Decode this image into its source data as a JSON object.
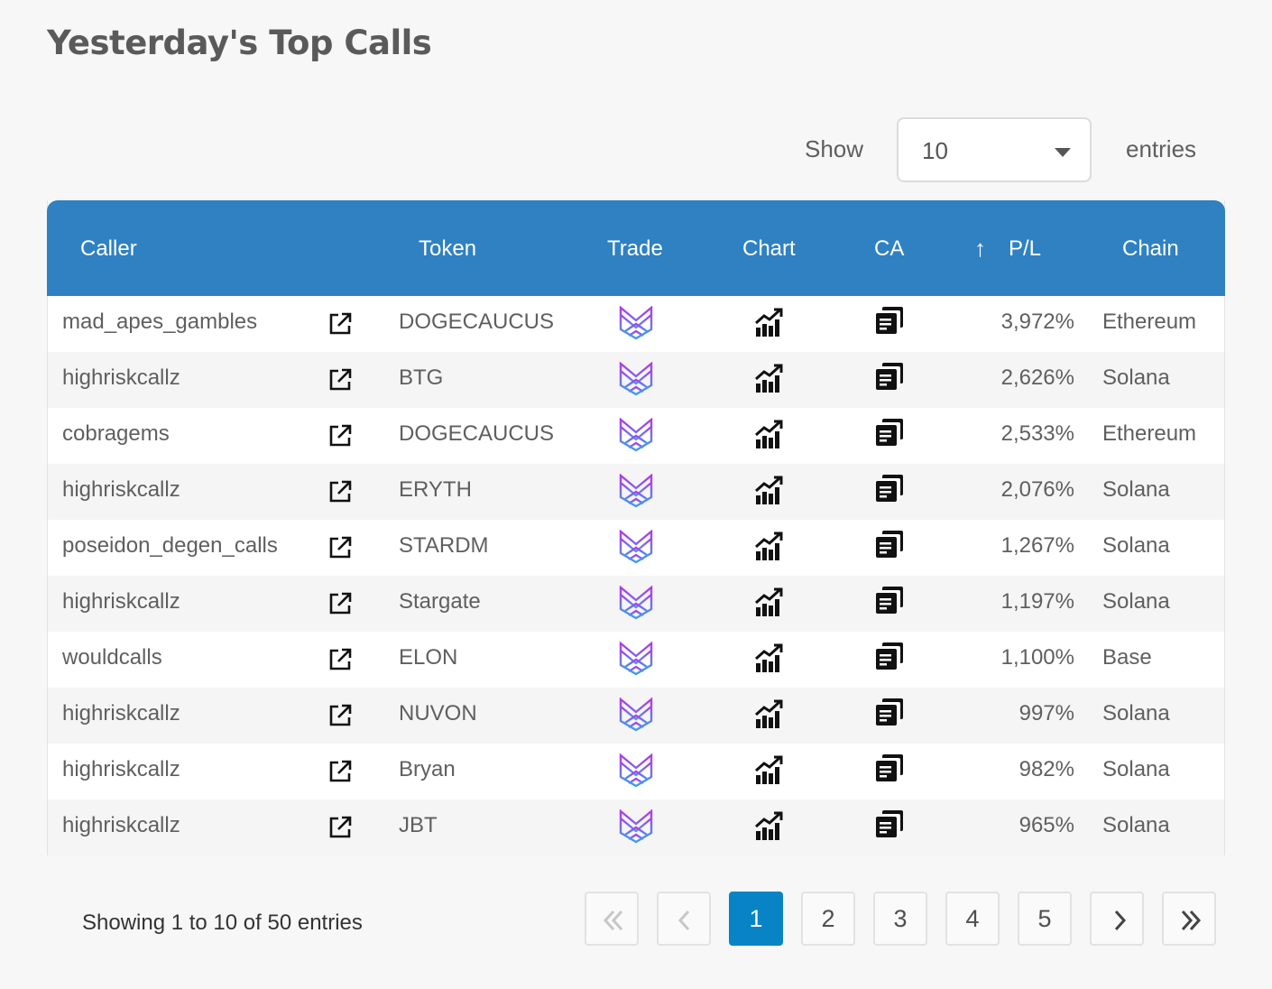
{
  "page": {
    "title": "Yesterday's Top Calls"
  },
  "length_menu": {
    "show_label": "Show",
    "selected": "10",
    "entries_label": "entries"
  },
  "table": {
    "columns": {
      "caller": "Caller",
      "token": "Token",
      "trade": "Trade",
      "chart": "Chart",
      "ca": "CA",
      "sort_arrow": "↑",
      "pl": "P/L",
      "chain": "Chain"
    },
    "rows": [
      {
        "caller": "mad_apes_gambles",
        "token": "DOGECAUCUS",
        "pl": "3,972%",
        "chain": "Ethereum"
      },
      {
        "caller": "highriskcallz",
        "token": "BTG",
        "pl": "2,626%",
        "chain": "Solana"
      },
      {
        "caller": "cobragems",
        "token": "DOGECAUCUS",
        "pl": "2,533%",
        "chain": "Ethereum"
      },
      {
        "caller": "highriskcallz",
        "token": "ERYTH",
        "pl": "2,076%",
        "chain": "Solana"
      },
      {
        "caller": "poseidon_degen_calls",
        "token": "STARDM",
        "pl": "1,267%",
        "chain": "Solana"
      },
      {
        "caller": "highriskcallz",
        "token": "Stargate",
        "pl": "1,197%",
        "chain": "Solana"
      },
      {
        "caller": "wouldcalls",
        "token": "ELON",
        "pl": "1,100%",
        "chain": "Base"
      },
      {
        "caller": "highriskcallz",
        "token": "NUVON",
        "pl": "997%",
        "chain": "Solana"
      },
      {
        "caller": "highriskcallz",
        "token": "Bryan",
        "pl": "982%",
        "chain": "Solana"
      },
      {
        "caller": "highriskcallz",
        "token": "JBT",
        "pl": "965%",
        "chain": "Solana"
      }
    ],
    "row_icons": {
      "caller_link": "external-link-icon",
      "trade": "trade-logo-icon",
      "chart": "chart-icon",
      "ca": "copy-icon"
    }
  },
  "footer": {
    "info": "Showing 1 to 10 of 50 entries",
    "pages": [
      "1",
      "2",
      "3",
      "4",
      "5"
    ],
    "current_page": "1"
  },
  "colors": {
    "header": "#2f81c2",
    "active_page": "#0883c6",
    "trade_logo_top": "#b23be6",
    "trade_logo_bottom": "#3f9cf0"
  }
}
